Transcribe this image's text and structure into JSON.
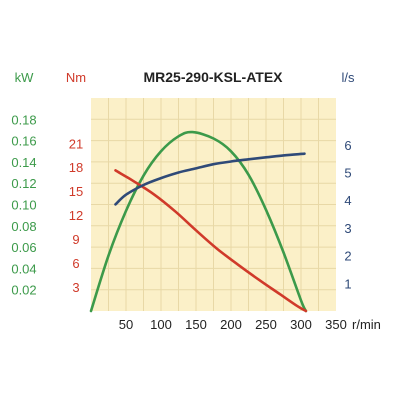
{
  "chart_data": {
    "type": "line",
    "title": "MR25-290-KSL-ATEX",
    "x_axis": {
      "label": "r/min",
      "range": [
        0,
        350
      ],
      "ticks": [
        50,
        100,
        150,
        200,
        250,
        300,
        350
      ]
    },
    "y_axes": [
      {
        "id": "power",
        "unit": "kW",
        "color": "#3c9a4a",
        "range": [
          0,
          0.2
        ],
        "ticks": [
          "0.02",
          "0.04",
          "0.06",
          "0.08",
          "0.10",
          "0.12",
          "0.14",
          "0.16",
          "0.18"
        ]
      },
      {
        "id": "torque",
        "unit": "Nm",
        "color": "#d03a2a",
        "range": [
          0,
          26.6667
        ],
        "ticks": [
          "3",
          "6",
          "9",
          "12",
          "15",
          "18",
          "21"
        ]
      },
      {
        "id": "flow",
        "unit": "l/s",
        "color": "#2f4a78",
        "range": [
          0,
          7.6923
        ],
        "ticks": [
          "1",
          "2",
          "3",
          "4",
          "5",
          "6"
        ]
      }
    ],
    "series": [
      {
        "axis": "power",
        "color": "#3c9a4a",
        "points": [
          [
            0,
            0
          ],
          [
            25,
            0.052
          ],
          [
            50,
            0.094
          ],
          [
            75,
            0.127
          ],
          [
            100,
            0.15
          ],
          [
            125,
            0.164
          ],
          [
            145,
            0.168
          ],
          [
            175,
            0.162
          ],
          [
            200,
            0.15
          ],
          [
            225,
            0.128
          ],
          [
            250,
            0.095
          ],
          [
            275,
            0.055
          ],
          [
            300,
            0.01
          ],
          [
            307,
            0
          ]
        ]
      },
      {
        "axis": "torque",
        "color": "#d03a2a",
        "points": [
          [
            35,
            17.6
          ],
          [
            60,
            16.3
          ],
          [
            90,
            14.6
          ],
          [
            120,
            12.5
          ],
          [
            150,
            10.1
          ],
          [
            180,
            7.8
          ],
          [
            210,
            5.8
          ],
          [
            240,
            3.9
          ],
          [
            270,
            2.1
          ],
          [
            295,
            0.6
          ],
          [
            307,
            0
          ]
        ]
      },
      {
        "axis": "flow",
        "color": "#2f4a78",
        "points": [
          [
            35,
            3.85
          ],
          [
            50,
            4.2
          ],
          [
            75,
            4.55
          ],
          [
            100,
            4.8
          ],
          [
            125,
            5.0
          ],
          [
            150,
            5.15
          ],
          [
            175,
            5.3
          ],
          [
            200,
            5.4
          ],
          [
            225,
            5.48
          ],
          [
            250,
            5.55
          ],
          [
            275,
            5.62
          ],
          [
            305,
            5.68
          ]
        ]
      }
    ],
    "grid": true,
    "plot_background": "#fbf0c8",
    "grid_color": "#e8d8a6"
  }
}
